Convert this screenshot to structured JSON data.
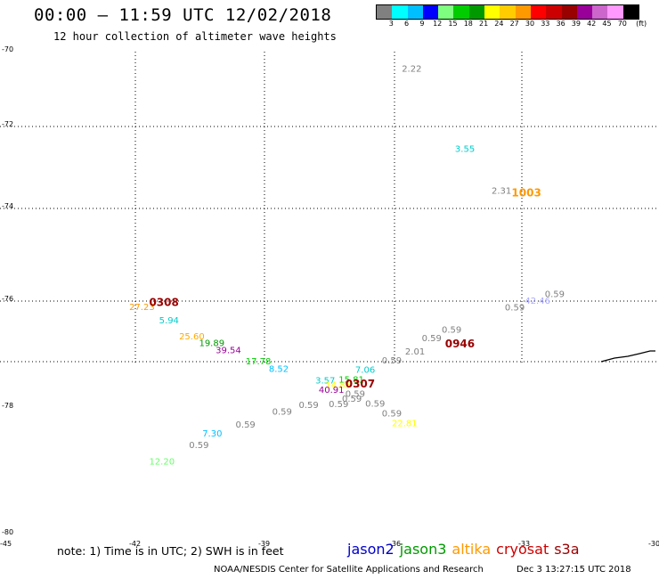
{
  "header": {
    "title": "00:00 – 11:59 UTC 12/02/2018",
    "subtitle": "12 hour collection of altimeter wave heights"
  },
  "colorbar": {
    "unit": "(ft)",
    "swatches": [
      "#808080",
      "#00ffff",
      "#00bfff",
      "#0000ff",
      "#7fff7f",
      "#00cc00",
      "#009900",
      "#ffff00",
      "#ffcc00",
      "#ff9900",
      "#ff0000",
      "#cc0000",
      "#990000",
      "#990099",
      "#cc66cc",
      "#ff99ff",
      "#000000"
    ],
    "labels": [
      "3",
      "6",
      "9",
      "12",
      "15",
      "18",
      "21",
      "24",
      "27",
      "30",
      "33",
      "36",
      "39",
      "42",
      "45",
      "70"
    ]
  },
  "axes": {
    "lat_labels": [
      "-70",
      "-72",
      "-74",
      "-76",
      "-78",
      "-80"
    ],
    "lon_labels": [
      "-45",
      "-42",
      "-39",
      "-36",
      "-33",
      "-30"
    ]
  },
  "observations": [
    {
      "text": "2.22",
      "color": "#808080",
      "lat": -70.4,
      "lon": -36.2
    },
    {
      "text": "3.55",
      "color": "#00cccc",
      "lat": -72.0,
      "lon": -34.6
    },
    {
      "text": "2.31",
      "color": "#808080",
      "lat": -72.8,
      "lon": -33.5
    },
    {
      "text": "27.23",
      "color": "#ff9900",
      "lat": -74.9,
      "lon": -44.4
    },
    {
      "text": "5.94",
      "color": "#00cccc",
      "lat": -75.3,
      "lon": -43.5
    },
    {
      "text": "25.60",
      "color": "#ffaa00",
      "lat": -75.7,
      "lon": -42.9
    },
    {
      "text": "19.89",
      "color": "#009900",
      "lat": -75.9,
      "lon": -42.3
    },
    {
      "text": "39.54",
      "color": "#990099",
      "lat": -76.1,
      "lon": -41.8
    },
    {
      "text": "17.78",
      "color": "#00cc00",
      "lat": -76.4,
      "lon": -40.9
    },
    {
      "text": "8.52",
      "color": "#00bfff",
      "lat": -76.6,
      "lon": -40.2
    },
    {
      "text": "3.57",
      "color": "#00cccc",
      "lat": -76.9,
      "lon": -38.8
    },
    {
      "text": "14.85",
      "color": "#ffff00",
      "lat": -77.0,
      "lon": -38.5
    },
    {
      "text": "15.81",
      "color": "#00cc00",
      "lat": -76.9,
      "lon": -38.1
    },
    {
      "text": "40.91",
      "color": "#990099",
      "lat": -77.1,
      "lon": -38.7
    },
    {
      "text": "7.06",
      "color": "#00cccc",
      "lat": -76.7,
      "lon": -37.6
    },
    {
      "text": "0.59",
      "color": "#808080",
      "lat": -77.2,
      "lon": -37.9
    },
    {
      "text": "0.59",
      "color": "#808080",
      "lat": -76.5,
      "lon": -36.8
    },
    {
      "text": "2.01",
      "color": "#808080",
      "lat": -76.3,
      "lon": -36.1
    },
    {
      "text": "0.59",
      "color": "#808080",
      "lat": -76.0,
      "lon": -35.6
    },
    {
      "text": "0.59",
      "color": "#808080",
      "lat": -75.8,
      "lon": -35.0
    },
    {
      "text": "0.59",
      "color": "#808080",
      "lat": -75.2,
      "lon": -33.1
    },
    {
      "text": "42.46",
      "color": "#aaaaff",
      "lat": -75.0,
      "lon": -32.5
    },
    {
      "text": "0.59",
      "color": "#808080",
      "lat": -74.8,
      "lon": -31.9
    },
    {
      "text": "0.59",
      "color": "#808080",
      "lat": -77.3,
      "lon": -38.0
    },
    {
      "text": "0.59",
      "color": "#808080",
      "lat": -77.4,
      "lon": -38.4
    },
    {
      "text": "0.59",
      "color": "#808080",
      "lat": -77.4,
      "lon": -37.3
    },
    {
      "text": "22.81",
      "color": "#ffff00",
      "lat": -77.8,
      "lon": -36.5
    },
    {
      "text": "0.59",
      "color": "#808080",
      "lat": -77.6,
      "lon": -36.8
    },
    {
      "text": "0.59",
      "color": "#808080",
      "lat": -77.4,
      "lon": -39.3
    },
    {
      "text": "0.59",
      "color": "#808080",
      "lat": -77.5,
      "lon": -40.1
    },
    {
      "text": "0.59",
      "color": "#808080",
      "lat": -77.7,
      "lon": -41.2
    },
    {
      "text": "7.30",
      "color": "#00bfff",
      "lat": -77.8,
      "lon": -42.2
    },
    {
      "text": "0.59",
      "color": "#808080",
      "lat": -78.0,
      "lon": -42.6
    },
    {
      "text": "12.20",
      "color": "#66ff66",
      "lat": -78.2,
      "lon": -43.8
    }
  ],
  "stations": [
    {
      "text": "0308",
      "color": "#990000",
      "lat": -74.9,
      "lon": -43.8
    },
    {
      "text": "1003",
      "color": "#ff9900",
      "lat": -72.8,
      "lon": -32.9
    },
    {
      "text": "0946",
      "color": "#990000",
      "lat": -76.1,
      "lon": -34.9
    },
    {
      "text": "0307",
      "color": "#990000",
      "lat": -77.0,
      "lon": -37.9
    }
  ],
  "footer": {
    "note": "note: 1) Time is in UTC; 2) SWH is in feet",
    "legend": [
      {
        "name": "jason2",
        "color": "#0000cc"
      },
      {
        "name": "jason3",
        "color": "#009900"
      },
      {
        "name": "altika",
        "color": "#ff9900"
      },
      {
        "name": "cryosat",
        "color": "#cc0000"
      },
      {
        "name": "s3a",
        "color": "#990000"
      }
    ],
    "credit": "NOAA/NESDIS Center for Satellite Applications and Research",
    "timestamp": "Dec  3 13:27:15 UTC 2018"
  }
}
